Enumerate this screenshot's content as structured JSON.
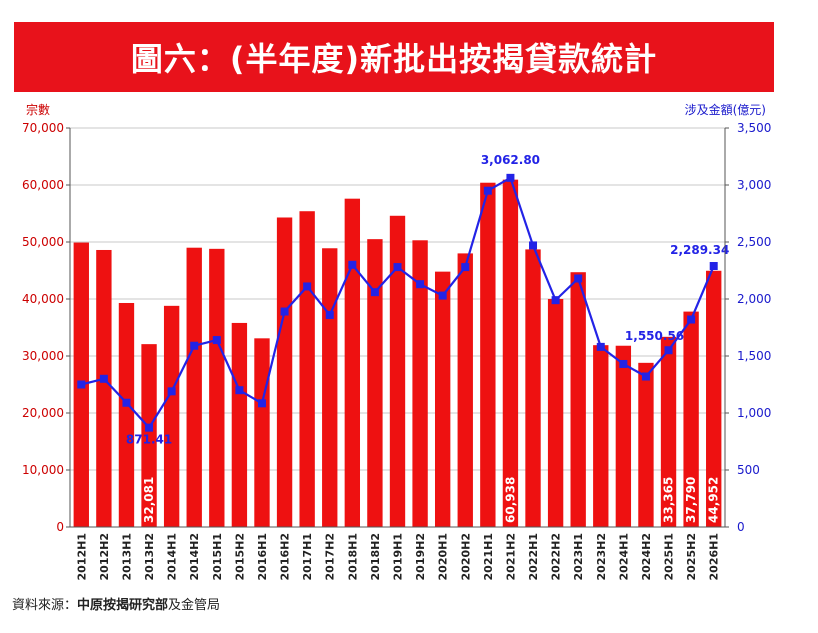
{
  "title": "圖六：(半年度)新批出按揭貸款統計",
  "source": {
    "prefix": "資料來源：",
    "org": "中原按揭研究部",
    "suffix": "及金管局"
  },
  "colors": {
    "banner": "#e8121b",
    "bar": "#ee1111",
    "line": "#2323e6",
    "left_axis_text": "#cc0000",
    "right_axis_text": "#1a1acc",
    "bar_label": "#ffffff"
  },
  "chart_data": {
    "type": "bar",
    "categories": [
      "2012H1",
      "2012H2",
      "2013H1",
      "2013H2",
      "2014H1",
      "2014H2",
      "2015H1",
      "2015H2",
      "2016H1",
      "2016H2",
      "2017H1",
      "2017H2",
      "2018H1",
      "2018H2",
      "2019H1",
      "2019H2",
      "2020H1",
      "2020H2",
      "2021H1",
      "2021H2",
      "2022H1",
      "2022H2",
      "2023H1",
      "2023H2",
      "2024H1",
      "2024H2",
      "2025H1",
      "2025H2",
      "2026H1"
    ],
    "ylabel": "宗數",
    "y2label": "涉及金額(億元)",
    "ylim": [
      0,
      70000
    ],
    "y2lim": [
      0,
      3500
    ],
    "yticks": [
      "0",
      "10,000",
      "20,000",
      "30,000",
      "40,000",
      "50,000",
      "60,000",
      "70,000"
    ],
    "y2ticks": [
      "0",
      "500",
      "1,000",
      "1,500",
      "2,000",
      "2,500",
      "3,000",
      "3,500"
    ],
    "grid": true,
    "series": [
      {
        "name": "宗數",
        "axis": "left",
        "type": "bar",
        "values": [
          49900,
          48600,
          39300,
          32081,
          38800,
          49000,
          48800,
          35800,
          33100,
          54300,
          55400,
          48900,
          57600,
          50500,
          54600,
          50300,
          44800,
          48000,
          60400,
          60938,
          48700,
          40000,
          44700,
          31900,
          31800,
          28800,
          33365,
          37790,
          44952
        ],
        "labels": {
          "3": "32,081",
          "19": "60,938",
          "26": "33,365",
          "27": "37,790",
          "28": "44,952"
        }
      },
      {
        "name": "涉及金額(億元)",
        "axis": "right",
        "type": "line",
        "values": [
          1250,
          1300,
          1090,
          871.41,
          1190,
          1590,
          1640,
          1200,
          1085,
          1890,
          2110,
          1860,
          2300,
          2060,
          2280,
          2130,
          2030,
          2280,
          2950,
          3062.8,
          2470,
          1990,
          2180,
          1580,
          1430,
          1320,
          1550.56,
          1820,
          2289.34
        ],
        "labels": {
          "3": "871.41",
          "19": "3,062.80",
          "26": "1,550.56",
          "28": "2,289.34"
        }
      }
    ]
  }
}
